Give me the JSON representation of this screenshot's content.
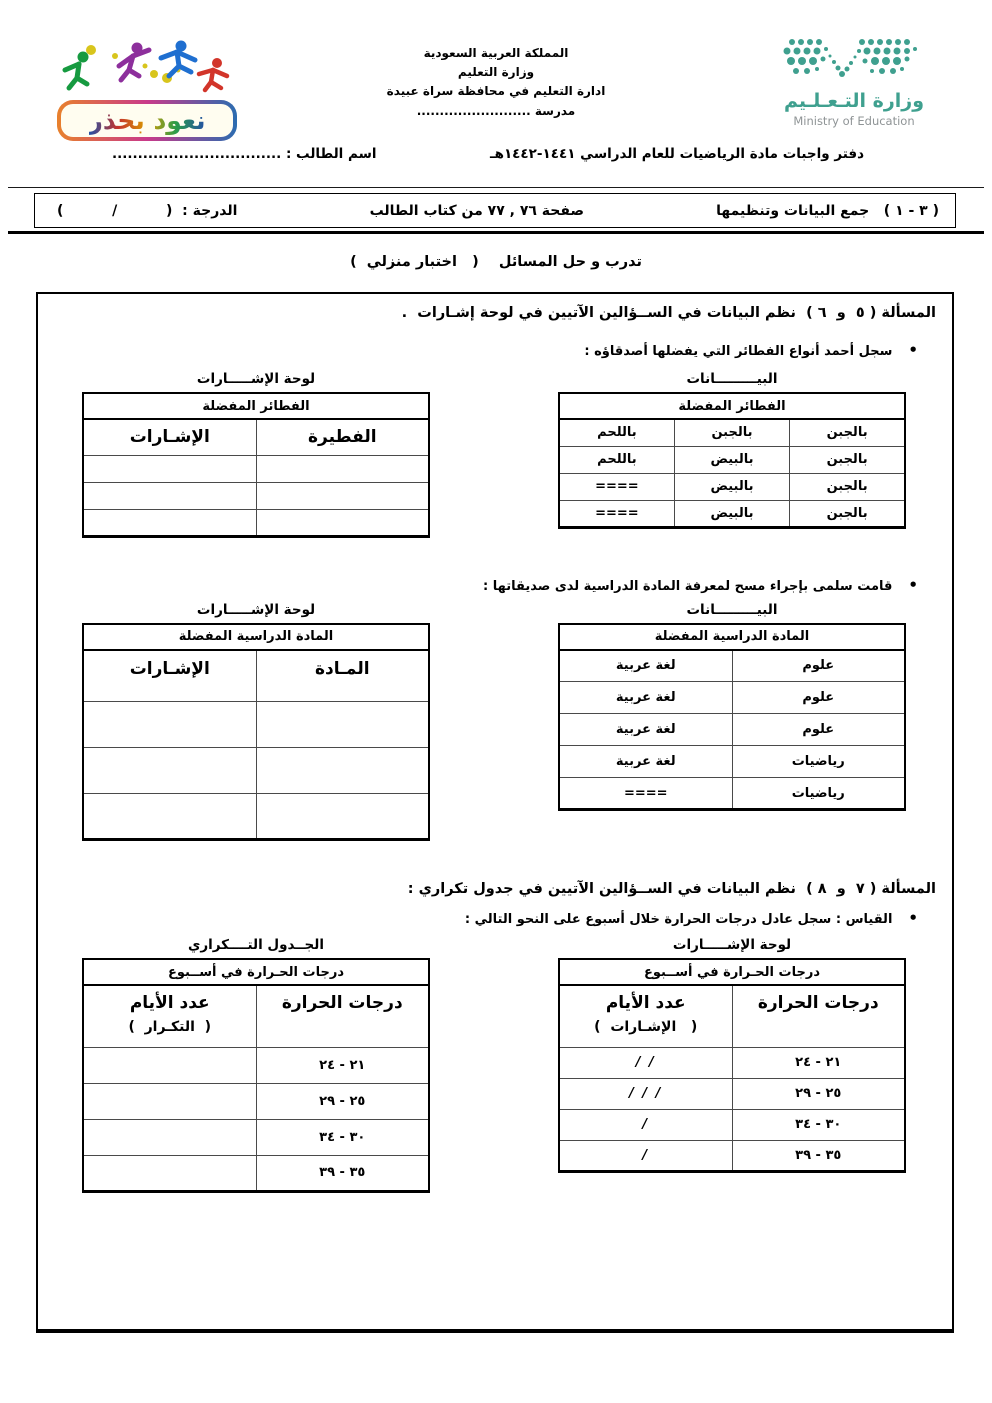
{
  "page": {
    "badge": {
      "text": "نعود بحذر"
    },
    "authority": {
      "lines": [
        "المملكة العربية السعودية",
        "وزارة التعليم",
        "ادارة التعليم في محافظة سراة عبيدة",
        "مدرسة ........................."
      ]
    },
    "ministry": {
      "arabic": "وزارة التـعـلـيم",
      "english": "Ministry of Education"
    },
    "notebook_title": "دفتر واجبات مادة الرياضيات للعام الدراسي ١٤٤١-١٤٤٢هـ",
    "student_name": "اسم الطالب : .................................",
    "lesson_bar": {
      "lesson": "( ٣ - ١ )   جمع البيانات وتنظيمها",
      "pages": "صفحة ٧٦ , ٧٧ من كتاب الطالب",
      "grade": "الدرجة :  (          /          )"
    },
    "practice_line": "تدرب و حل المسائل    (   اختبار منزلي  )"
  },
  "problem_5_6": {
    "title": "المسألة ( ٥  و  ٦ )  نظم البيانات في الســؤالين الآتيين في لوحة إشـارات  .",
    "pies": {
      "bullet": "سجل أحمد أنواع الفطائر التي يفضلها أصدقاؤه :",
      "data_title": "البيـــــــــانات",
      "data_header": "الفطائر المفضلة",
      "data_rows": [
        [
          "بالجبن",
          "بالجبن",
          "باللحم"
        ],
        [
          "بالجبن",
          "بالبيض",
          "باللحم"
        ],
        [
          "بالجبن",
          "بالبيض",
          "===="
        ],
        [
          "بالجبن",
          "بالبيض",
          "===="
        ]
      ],
      "board_title": "لوحة الإشـــــارات",
      "board_header": "الفطائر المفضلة",
      "board_cols": {
        "item": "الفطيرة",
        "tallies": "الإشـارات"
      },
      "board_rows": [
        [
          "",
          ""
        ],
        [
          "",
          ""
        ],
        [
          "",
          ""
        ]
      ]
    },
    "subjects": {
      "bullet": "قامت سلمى بإجراء مسح لمعرفة المادة الدراسية لدى صديقاتها :",
      "data_title": "البيـــــــــانات",
      "data_header": "المادة الدراسية  المفضلة",
      "data_rows": [
        [
          "علوم",
          "لغة عربية"
        ],
        [
          "علوم",
          "لغة عربية"
        ],
        [
          "علوم",
          "لغة عربية"
        ],
        [
          "رياضيات",
          "لغة عربية"
        ],
        [
          "رياضيات",
          "===="
        ]
      ],
      "board_title": "لوحة الإشـــــارات",
      "board_header": "المادة الدراسية  المفضلة",
      "board_cols": {
        "item": "المـادة",
        "tallies": "الإشـارات"
      },
      "board_rows": [
        [
          "",
          ""
        ],
        [
          "",
          ""
        ],
        [
          "",
          ""
        ]
      ]
    }
  },
  "problem_7_8": {
    "title": "المسألة ( ٧  و  ٨ )  نظم البيانات في الســؤالين الآتيين في جدول تكراري :",
    "bullet": "القياس :  سجل عادل درجات الحرارة خلال أسبوع على النحو التالي :",
    "tally_board": {
      "title": "لوحة الإشـــــارات",
      "header": "درجات الحـرارة في أســبوع",
      "col_temp": "درجات الحرارة",
      "col_days": "عدد الأيام",
      "col_days_sub": "(   الإشـارات  )",
      "rows": [
        [
          "٢١  -  ٢٤",
          "/ /"
        ],
        [
          "٢٥  -  ٢٩",
          "/ / /"
        ],
        [
          "٣٠  -  ٣٤",
          "/"
        ],
        [
          "٣٥  -  ٣٩",
          "/"
        ]
      ]
    },
    "freq_table": {
      "title": "الجــدول التــــكراري",
      "header": "درجات الحـرارة في أســبوع",
      "col_temp": "درجات الحرارة",
      "col_days": "عدد الأيام",
      "col_days_sub": "(  التكـرار  )",
      "rows": [
        [
          "٢١  -  ٢٤",
          ""
        ],
        [
          "٢٥  -  ٢٩",
          ""
        ],
        [
          "٣٠  -  ٣٤",
          ""
        ],
        [
          "٣٥  -  ٣٩",
          ""
        ]
      ]
    }
  },
  "colors": {
    "teal": "#3fa08f",
    "gray_text": "#8f9496",
    "ink": "#000000"
  }
}
